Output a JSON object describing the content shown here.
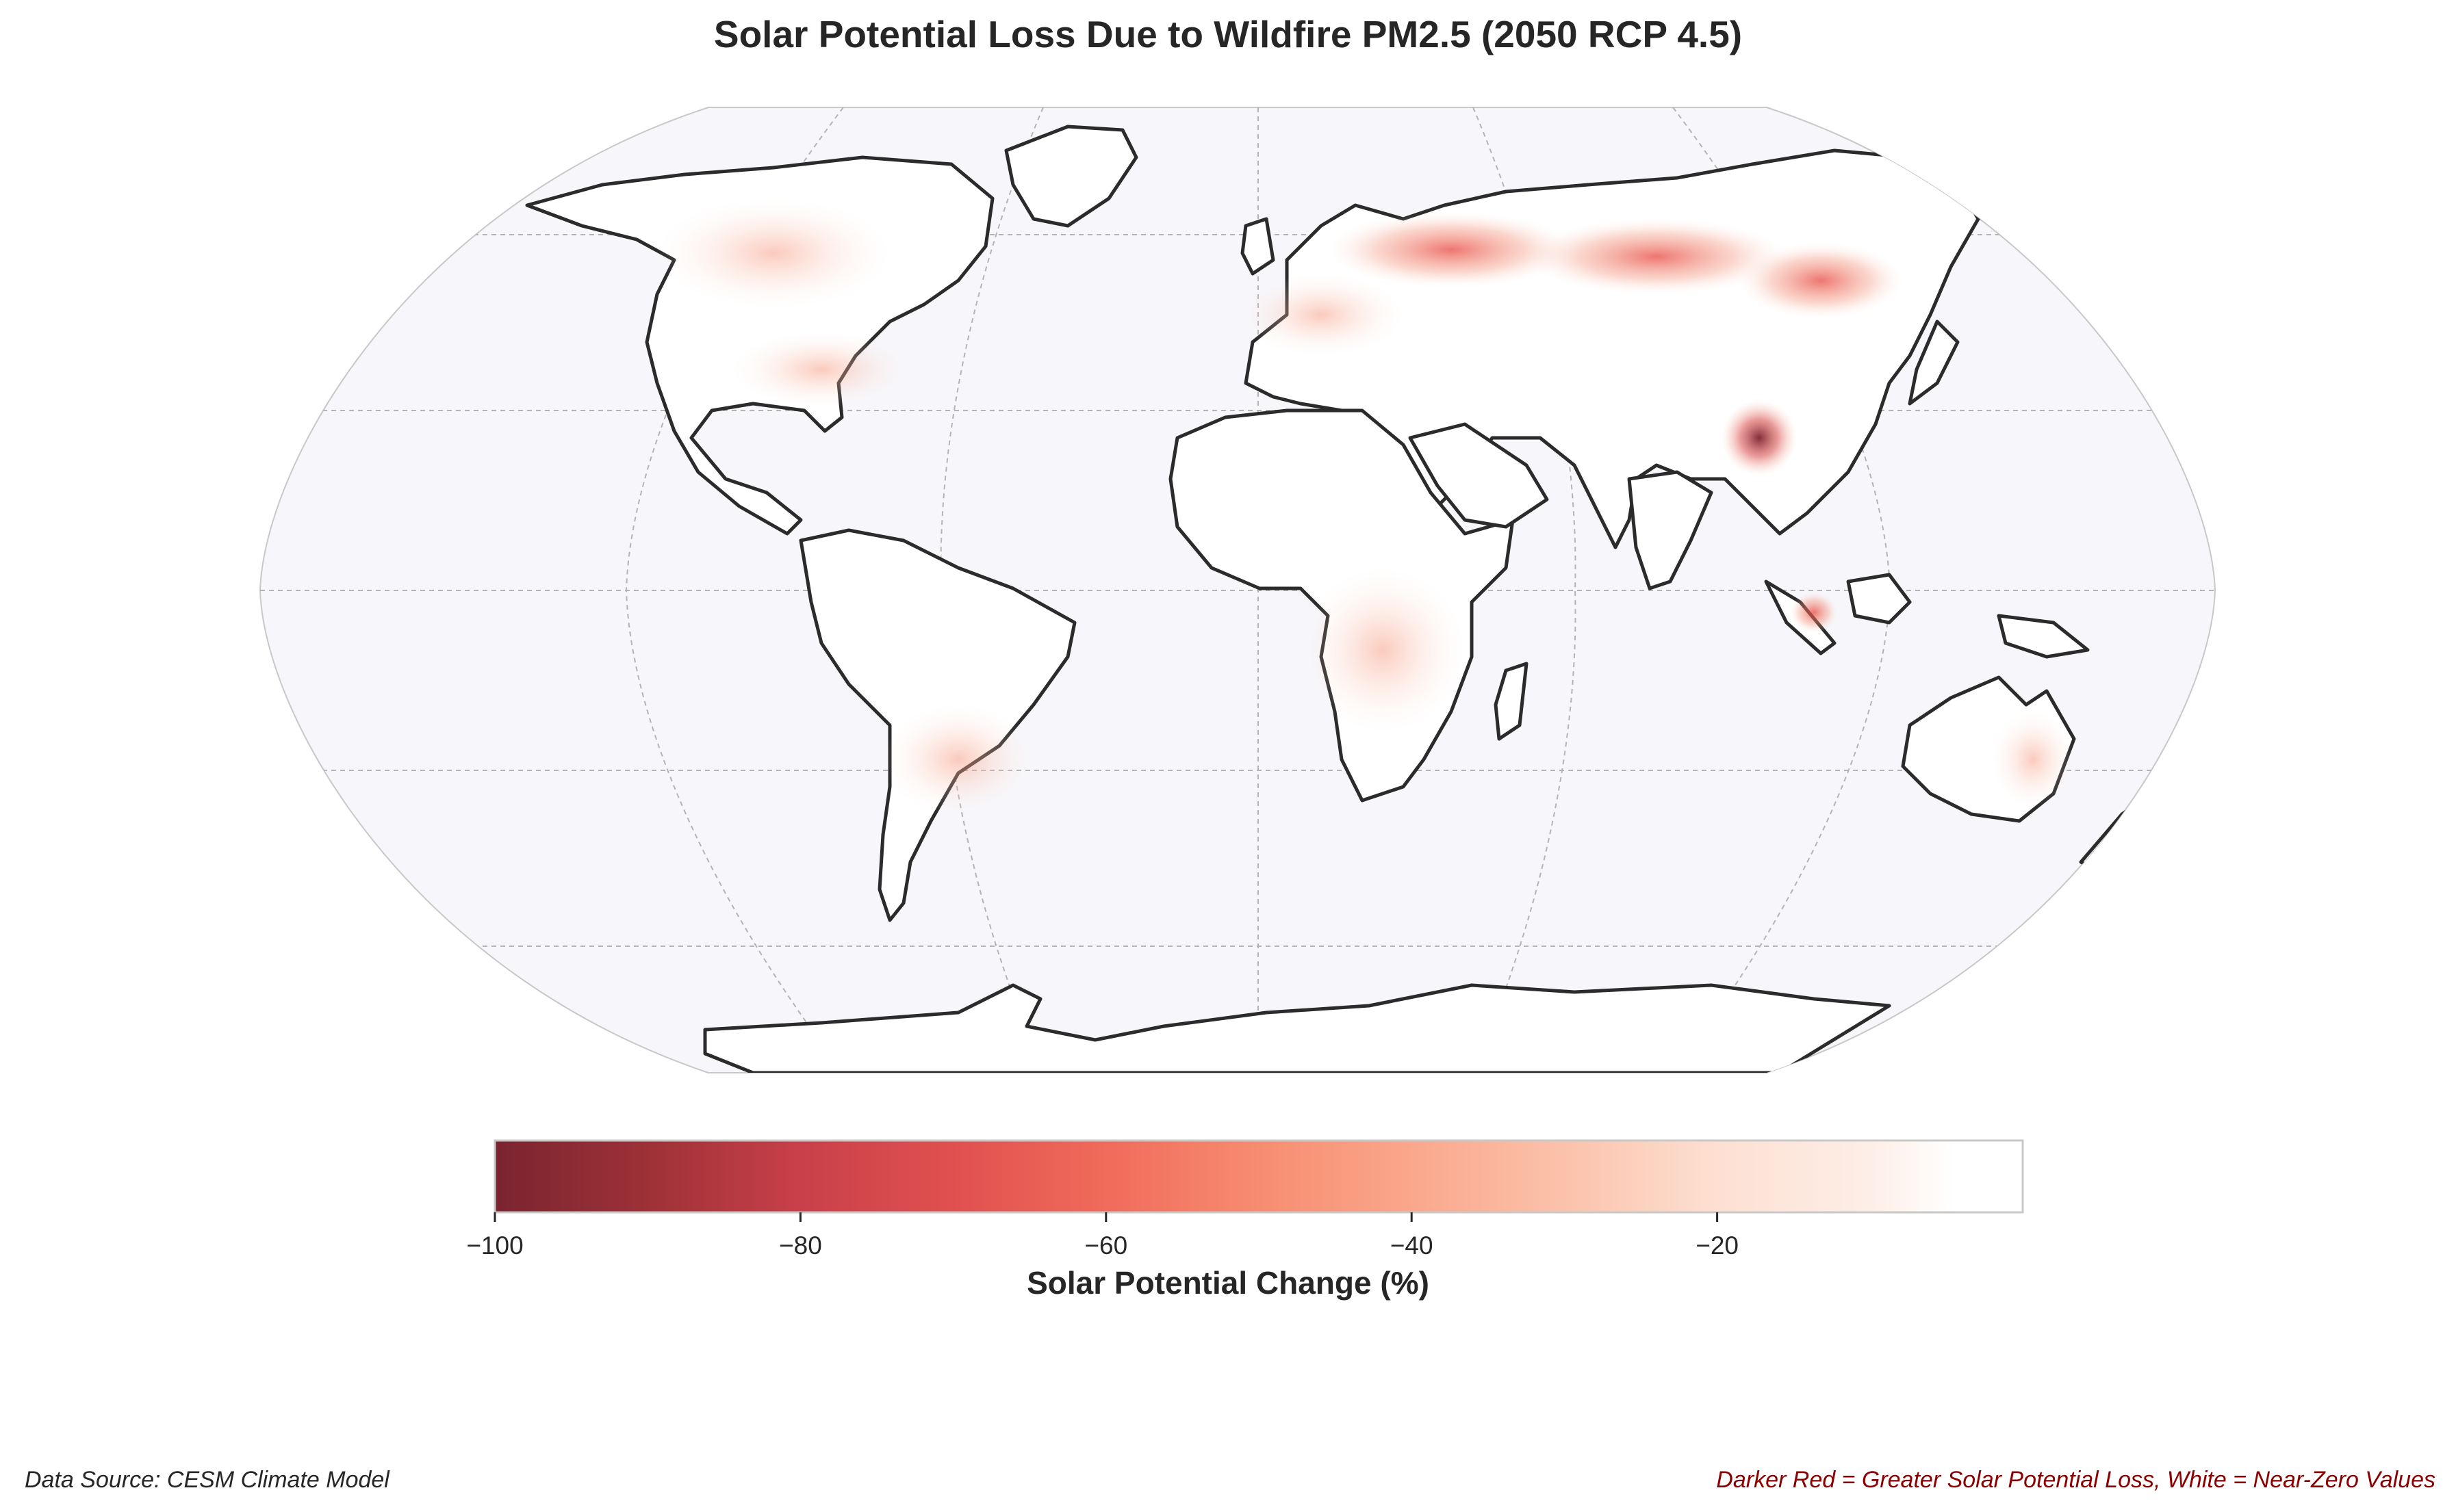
{
  "title": "Solar Potential Loss Due to Wildfire PM2.5 (2050 RCP 4.5)",
  "colorbar": {
    "label": "Solar Potential Change (%)",
    "ticks": [
      "−100",
      "−80",
      "−60",
      "−40",
      "−20"
    ],
    "tick_values": [
      -100,
      -80,
      -60,
      -40,
      -20
    ],
    "range": [
      -100,
      0
    ],
    "colors": [
      "#7a2430",
      "#9e3137",
      "#c9404a",
      "#e0504f",
      "#f06b5a",
      "#f78c70",
      "#faa78c",
      "#fbc2ab",
      "#fde0d2",
      "#fdeee7",
      "#ffffff"
    ]
  },
  "map": {
    "projection": "Robinson",
    "ocean_color": "#f7f7fb",
    "land_color": "#ffffff",
    "coast_color": "#2b2b2b",
    "border_color": "#8a8a8a",
    "gridlines": true,
    "hotspots": [
      {
        "region": "Western Russia",
        "lon": 40,
        "lat": 56,
        "value": -45
      },
      {
        "region": "Central Siberia",
        "lon": 90,
        "lat": 57,
        "value": -40
      },
      {
        "region": "Amur / NE China",
        "lon": 123,
        "lat": 52,
        "value": -45
      },
      {
        "region": "Myanmar / Yunnan",
        "lon": 97,
        "lat": 24,
        "value": -90
      },
      {
        "region": "Sumatra",
        "lon": 104,
        "lat": -3,
        "value": -55
      },
      {
        "region": "Western Canada",
        "lon": -118,
        "lat": 57,
        "value": -20
      },
      {
        "region": "US Southeast",
        "lon": -88,
        "lat": 33,
        "value": -22
      },
      {
        "region": "Paraguay / N Argentina",
        "lon": -58,
        "lat": -24,
        "value": -28
      },
      {
        "region": "Southern Africa",
        "lon": 25,
        "lat": -12,
        "value": -12
      },
      {
        "region": "Eastern Australia",
        "lon": 150,
        "lat": -29,
        "value": -15
      }
    ]
  },
  "footer": {
    "source": "Data Source: CESM Climate Model",
    "note": "Darker Red = Greater Solar Potential Loss, White = Near-Zero Values"
  }
}
